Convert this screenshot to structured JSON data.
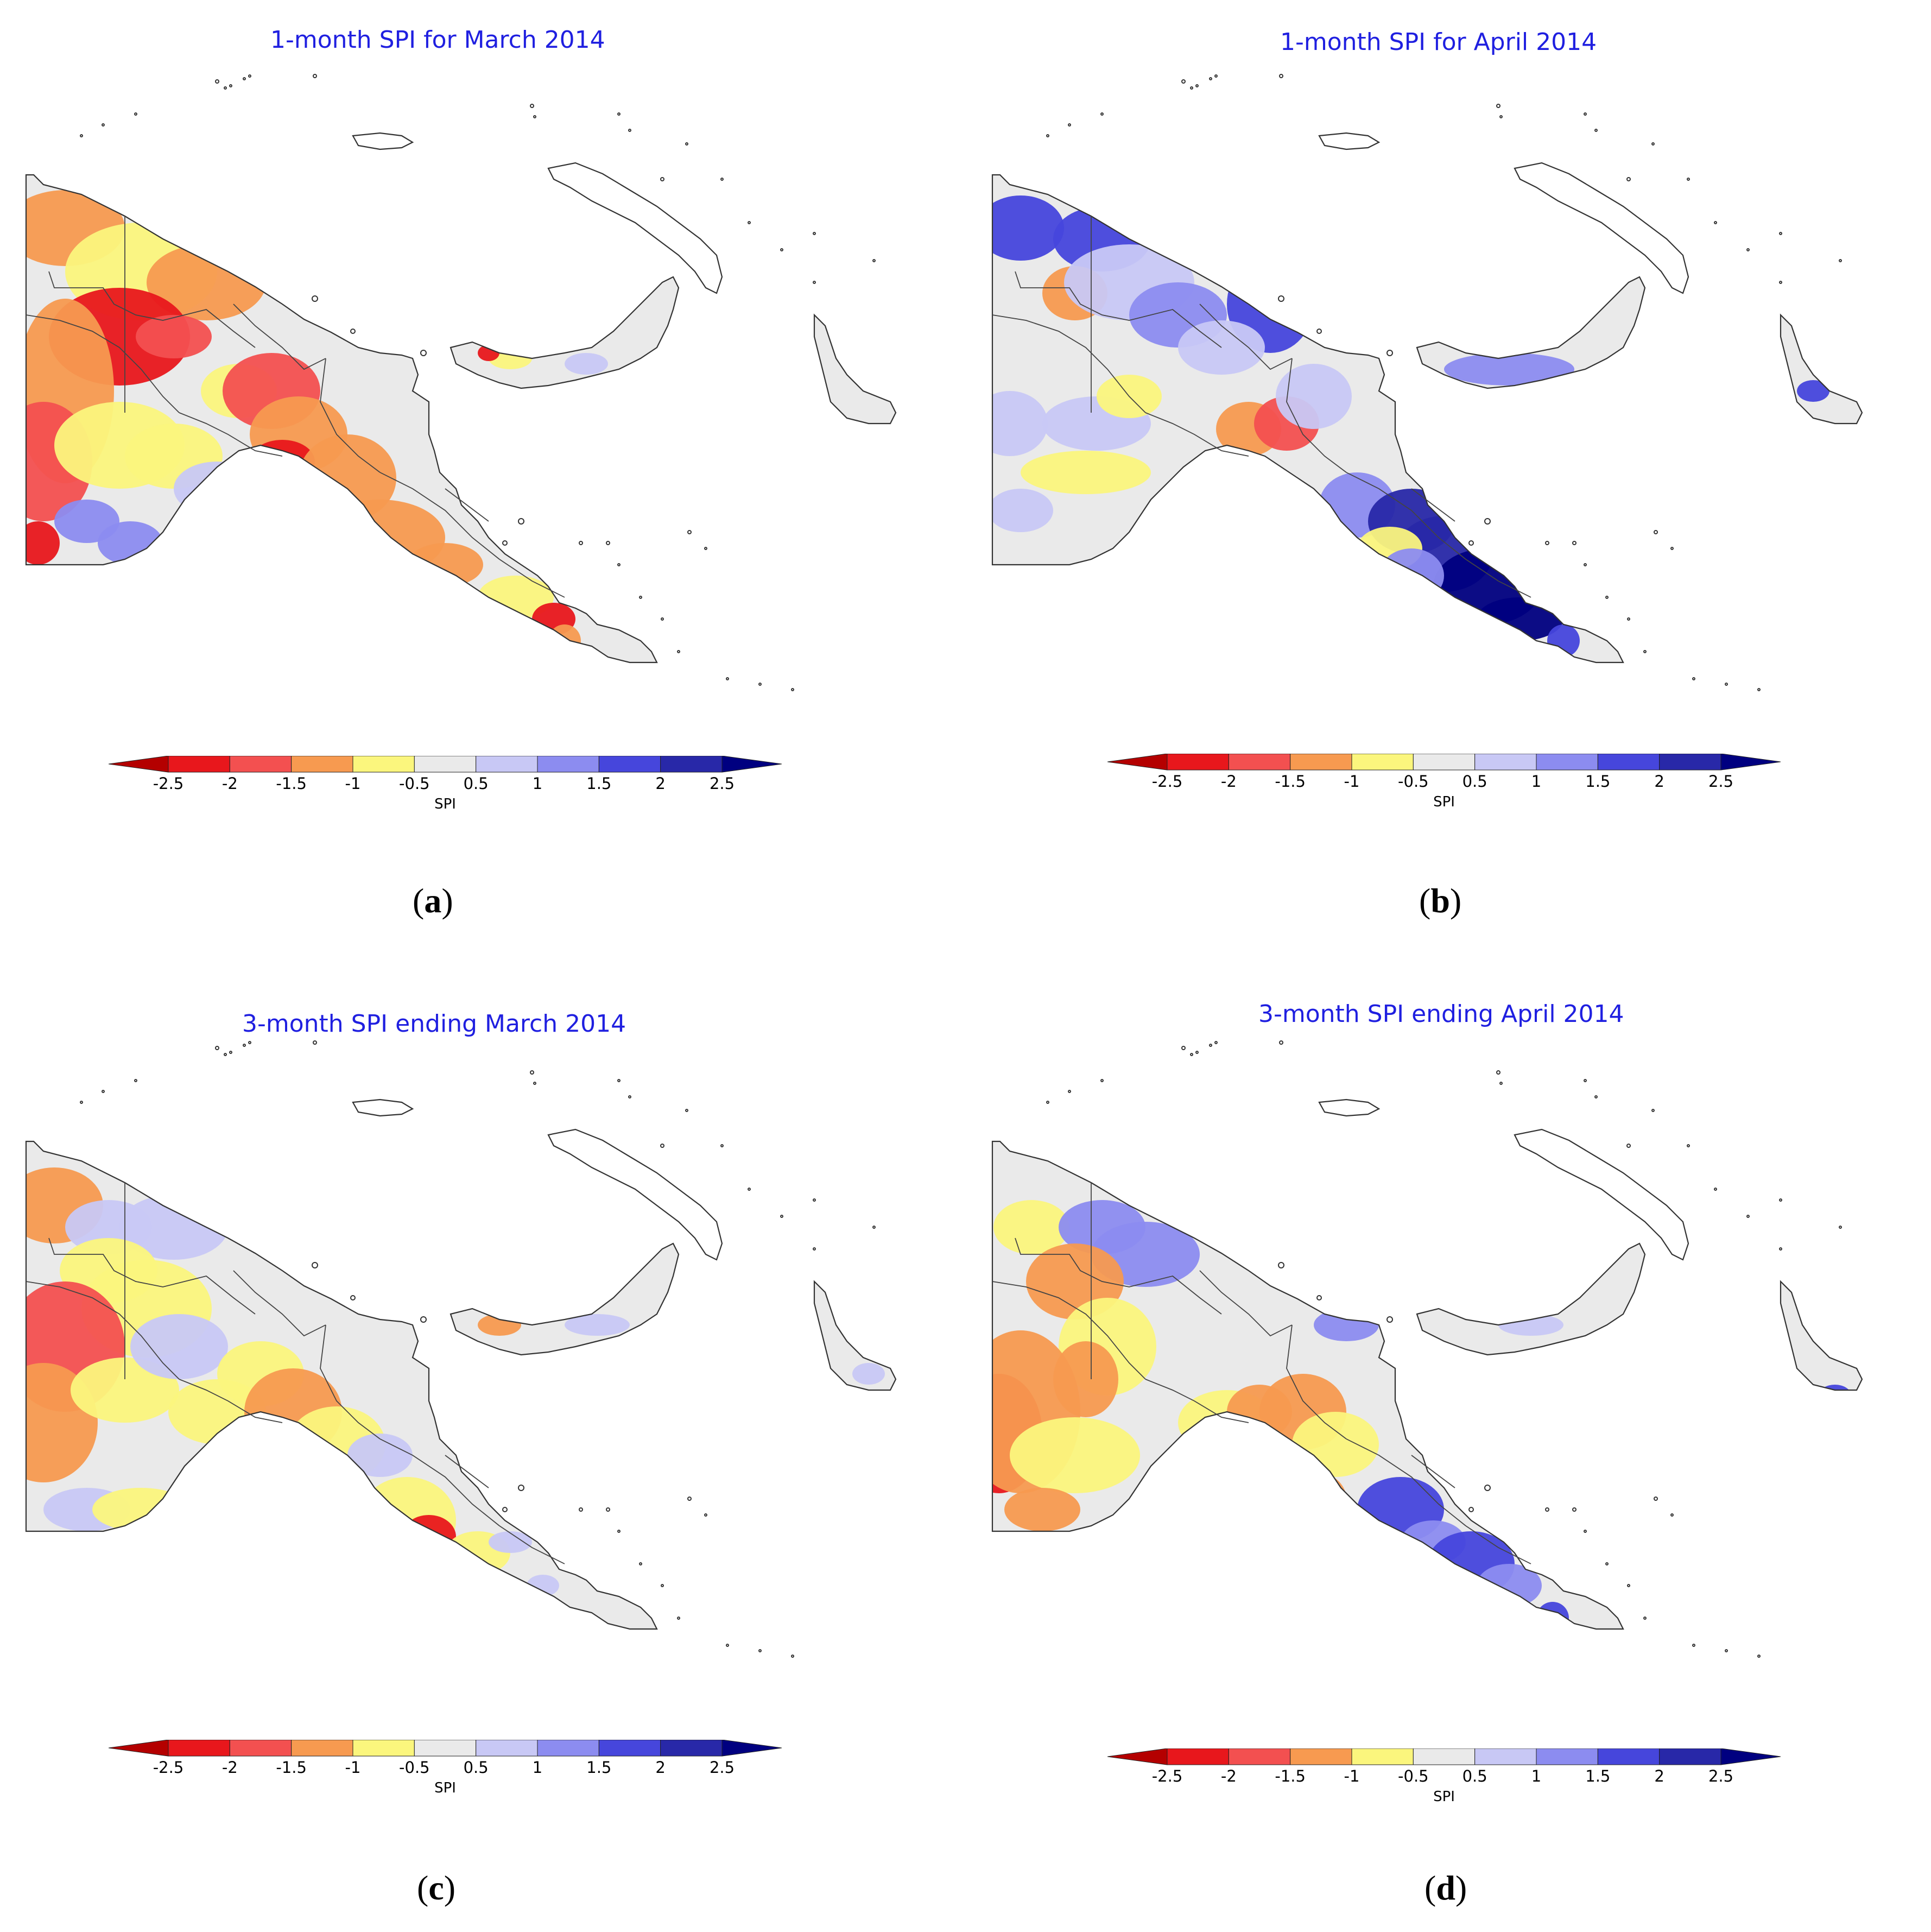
{
  "figure": {
    "panels": [
      {
        "id": "a",
        "title": "1-month SPI for March 2014",
        "letter": "a",
        "condition": "dry"
      },
      {
        "id": "b",
        "title": "1-month SPI for April 2014",
        "letter": "b",
        "condition": "wet"
      },
      {
        "id": "c",
        "title": "3-month SPI ending March 2014",
        "letter": "c",
        "condition": "mild-dry"
      },
      {
        "id": "d",
        "title": "3-month SPI ending April 2014",
        "letter": "d",
        "condition": "mixed"
      }
    ],
    "colorbar": {
      "label": "SPI",
      "ticks": [
        "-2.5",
        "-2",
        "-1.5",
        "-1",
        "-0.5",
        "0.5",
        "1",
        "1.5",
        "2",
        "2.5"
      ],
      "colors": [
        "#b40000",
        "#e8171c",
        "#f35050",
        "#f79a50",
        "#fbf67d",
        "#eaeaea",
        "#c8c8f5",
        "#8c8cf0",
        "#4646dc",
        "#2828a8",
        "#000080"
      ]
    }
  }
}
